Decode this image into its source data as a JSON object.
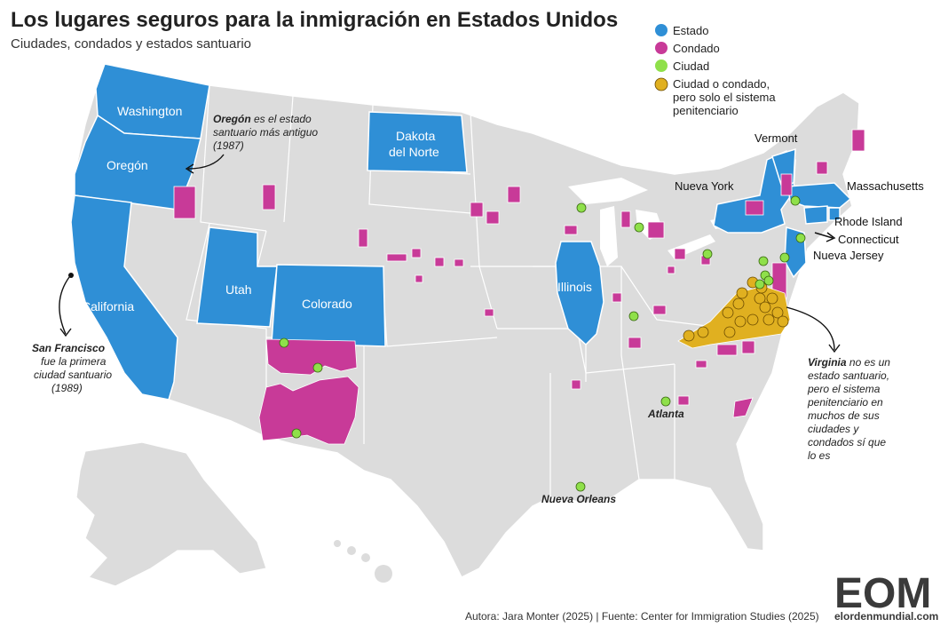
{
  "header": {
    "title": "Los lugares seguros para la inmigración en Estados Unidos",
    "subtitle": "Ciudades, condados y estados santuario"
  },
  "legend": {
    "items": [
      {
        "label": "Estado",
        "color": "#2f8fd6"
      },
      {
        "label": "Condado",
        "color": "#c83a98"
      },
      {
        "label": "Ciudad",
        "color": "#8fe04a"
      },
      {
        "label_lines": [
          "Ciudad o condado,",
          "pero solo el sistema",
          "penitenciario"
        ],
        "color": "#e0b020"
      }
    ]
  },
  "states": {
    "washington": "Washington",
    "oregon": "Oregón",
    "california": "California",
    "utah": "Utah",
    "colorado": "Colorado",
    "dakota_norte_1": "Dakota",
    "dakota_norte_2": "del Norte",
    "illinois": "Illinois",
    "vermont": "Vermont",
    "nueva_york": "Nueva York",
    "massachusetts": "Massachusetts",
    "rhode_island": "Rhode Island",
    "connecticut": "Connecticut",
    "nueva_jersey": "Nueva Jersey"
  },
  "annotations": {
    "oregon_note": {
      "bold": "Oregón",
      "line1_rest": " es el estado",
      "line2": "santuario más antiguo",
      "line3": "(1987)"
    },
    "sf_note": {
      "bold": "San Francisco",
      "line2": "fue la primera",
      "line3": "ciudad santuario",
      "line4": "(1989)"
    },
    "virginia_note": {
      "bold": "Virginia",
      "line1_rest": " no es un",
      "line2": "estado santuario,",
      "line3": "pero el sistema",
      "line4": "penitenciario en",
      "line5": "muchos de sus",
      "line6": "ciudades y",
      "line7": "condados sí que",
      "line8": "lo es"
    }
  },
  "cities": {
    "atlanta": "Atlanta",
    "nueva_orleans": "Nueva Orleans"
  },
  "footer": {
    "credit": "Autora: Jara Monter (2025) | Fuente: Center for Immigration Studies (2025)",
    "logo": "EOM",
    "site": "elordenmundial.com"
  },
  "colors": {
    "background_states": "#dcdcdc",
    "state_border": "#ffffff",
    "estado": "#2f8fd6",
    "condado": "#c83a98",
    "ciudad": "#8fe04a",
    "penitenciario": "#e0b020"
  }
}
